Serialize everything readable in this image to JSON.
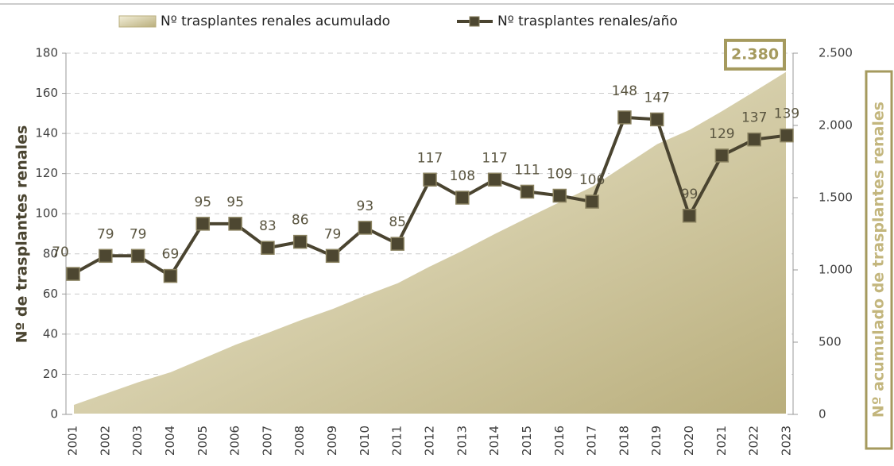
{
  "chart_data": {
    "type": "line",
    "categories": [
      "2001",
      "2002",
      "2003",
      "2004",
      "2005",
      "2006",
      "2007",
      "2008",
      "2009",
      "2010",
      "2011",
      "2012",
      "2013",
      "2014",
      "2015",
      "2016",
      "2017",
      "2018",
      "2019",
      "2020",
      "2021",
      "2022",
      "2023"
    ],
    "series": [
      {
        "name": "Nº trasplantes renales acumulado",
        "type": "area",
        "axis": "y2",
        "color": "#d4cb9e",
        "values": [
          70,
          149,
          228,
          297,
          392,
          487,
          570,
          656,
          735,
          828,
          913,
          1030,
          1138,
          1255,
          1366,
          1475,
          1581,
          1729,
          1876,
          1975,
          2104,
          2241,
          2380
        ]
      },
      {
        "name": "Nº trasplantes renales/año",
        "type": "line",
        "color": "#4a4430",
        "values": [
          70,
          79,
          79,
          69,
          95,
          95,
          83,
          86,
          79,
          93,
          85,
          117,
          108,
          117,
          111,
          109,
          106,
          148,
          147,
          99,
          129,
          137,
          139
        ]
      }
    ],
    "ylabel": "Nº de trasplantes renales",
    "y2label": "Nº acumulado de trasplantes renales",
    "annotation": "2.380",
    "ylim": [
      0,
      180
    ],
    "yticks": [
      0,
      20,
      40,
      60,
      80,
      100,
      120,
      140,
      160,
      180
    ],
    "y2lim": [
      0,
      2500
    ],
    "y2ticks": [
      0,
      500,
      {
        "value": 1000,
        "label": "1.000"
      },
      {
        "value": 1500,
        "label": "1.500"
      },
      {
        "value": 2000,
        "label": "2.000"
      },
      {
        "value": 2500,
        "label": "2.500"
      }
    ],
    "grid": true,
    "legend": "top"
  }
}
